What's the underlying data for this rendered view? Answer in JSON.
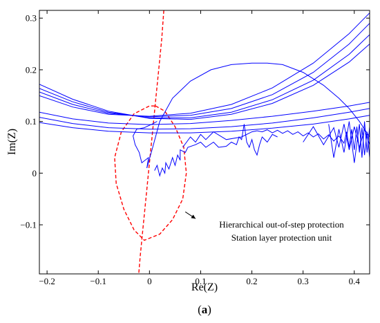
{
  "chart_data": {
    "type": "line",
    "title": "",
    "xlabel": "Re(Z)",
    "ylabel": "Im(Z)",
    "xlim": [
      -0.215,
      0.43
    ],
    "ylim": [
      -0.195,
      0.315
    ],
    "xticks": [
      -0.2,
      -0.1,
      0,
      0.1,
      0.2,
      0.3,
      0.4
    ],
    "xtick_labels": [
      "−0.2",
      "−0.1",
      "0",
      "0.1",
      "0.2",
      "0.3",
      "0.4"
    ],
    "yticks": [
      -0.1,
      0,
      0.1,
      0.2,
      0.3
    ],
    "ytick_labels": [
      "−0.1",
      "0",
      "0.1",
      "0.2",
      "0.3"
    ],
    "grid": false,
    "panel_label": "(a)",
    "panel_letter": "a",
    "panel_open": "(",
    "panel_close": ")",
    "annotation": {
      "line1": "Hierarchical out-of-step protection",
      "line2": "Station layer protection unit",
      "arrow_tail": [
        0.07,
        -0.075
      ],
      "arrow_head": [
        0.09,
        -0.088
      ],
      "text_anchor": [
        0.15,
        -0.105
      ]
    },
    "colors": {
      "trajectory": "#0000ff",
      "boundary": "#ff0000",
      "axes": "#000000"
    },
    "series": [
      {
        "style": "dashed-red",
        "points": [
          [
            0.028,
            0.315
          ],
          [
            0.024,
            0.26
          ],
          [
            0.018,
            0.2
          ],
          [
            0.012,
            0.14
          ],
          [
            0.006,
            0.08
          ],
          [
            0.0,
            0.02
          ],
          [
            -0.006,
            -0.04
          ],
          [
            -0.012,
            -0.1
          ],
          [
            -0.018,
            -0.16
          ],
          [
            -0.021,
            -0.195
          ]
        ]
      },
      {
        "style": "dashed-red",
        "points": [
          [
            0.012,
            0.13
          ],
          [
            0.03,
            0.12
          ],
          [
            0.05,
            0.09
          ],
          [
            0.067,
            0.05
          ],
          [
            0.072,
            0.0
          ],
          [
            0.065,
            -0.05
          ],
          [
            0.045,
            -0.09
          ],
          [
            0.02,
            -0.118
          ],
          [
            -0.01,
            -0.13
          ],
          [
            -0.03,
            -0.11
          ],
          [
            -0.05,
            -0.07
          ],
          [
            -0.065,
            -0.02
          ],
          [
            -0.068,
            0.03
          ],
          [
            -0.055,
            0.08
          ],
          [
            -0.03,
            0.115
          ],
          [
            0.0,
            0.13
          ],
          [
            0.012,
            0.13
          ]
        ]
      },
      {
        "style": "solid-blue",
        "points": [
          [
            -0.215,
            0.172
          ],
          [
            -0.15,
            0.143
          ],
          [
            -0.08,
            0.12
          ],
          [
            0.0,
            0.106
          ],
          [
            0.08,
            0.104
          ],
          [
            0.16,
            0.114
          ],
          [
            0.24,
            0.135
          ],
          [
            0.32,
            0.17
          ],
          [
            0.39,
            0.215
          ],
          [
            0.43,
            0.25
          ]
        ]
      },
      {
        "style": "solid-blue",
        "points": [
          [
            -0.215,
            0.164
          ],
          [
            -0.15,
            0.138
          ],
          [
            -0.08,
            0.118
          ],
          [
            0.0,
            0.107
          ],
          [
            0.08,
            0.107
          ],
          [
            0.16,
            0.118
          ],
          [
            0.24,
            0.142
          ],
          [
            0.32,
            0.18
          ],
          [
            0.39,
            0.23
          ],
          [
            0.43,
            0.268
          ]
        ]
      },
      {
        "style": "solid-blue",
        "points": [
          [
            -0.215,
            0.157
          ],
          [
            -0.15,
            0.133
          ],
          [
            -0.08,
            0.116
          ],
          [
            0.0,
            0.109
          ],
          [
            0.08,
            0.112
          ],
          [
            0.16,
            0.125
          ],
          [
            0.24,
            0.152
          ],
          [
            0.32,
            0.195
          ],
          [
            0.39,
            0.25
          ],
          [
            0.43,
            0.29
          ]
        ]
      },
      {
        "style": "solid-blue",
        "points": [
          [
            -0.215,
            0.15
          ],
          [
            -0.15,
            0.128
          ],
          [
            -0.08,
            0.114
          ],
          [
            0.0,
            0.11
          ],
          [
            0.08,
            0.116
          ],
          [
            0.16,
            0.133
          ],
          [
            0.24,
            0.165
          ],
          [
            0.32,
            0.213
          ],
          [
            0.39,
            0.27
          ],
          [
            0.43,
            0.31
          ]
        ]
      },
      {
        "style": "solid-blue",
        "points": [
          [
            -0.215,
            0.118
          ],
          [
            -0.15,
            0.105
          ],
          [
            -0.08,
            0.097
          ],
          [
            0.0,
            0.094
          ],
          [
            0.08,
            0.096
          ],
          [
            0.16,
            0.102
          ],
          [
            0.24,
            0.11
          ],
          [
            0.32,
            0.12
          ],
          [
            0.39,
            0.13
          ],
          [
            0.43,
            0.137
          ]
        ]
      },
      {
        "style": "solid-blue",
        "points": [
          [
            -0.215,
            0.108
          ],
          [
            -0.15,
            0.096
          ],
          [
            -0.08,
            0.088
          ],
          [
            0.0,
            0.085
          ],
          [
            0.08,
            0.086
          ],
          [
            0.16,
            0.09
          ],
          [
            0.24,
            0.097
          ],
          [
            0.32,
            0.107
          ],
          [
            0.39,
            0.118
          ],
          [
            0.43,
            0.125
          ]
        ]
      },
      {
        "style": "solid-blue",
        "points": [
          [
            -0.215,
            0.098
          ],
          [
            -0.15,
            0.088
          ],
          [
            -0.08,
            0.081
          ],
          [
            0.0,
            0.078
          ],
          [
            0.08,
            0.078
          ],
          [
            0.16,
            0.081
          ],
          [
            0.24,
            0.087
          ],
          [
            0.32,
            0.095
          ],
          [
            0.39,
            0.105
          ],
          [
            0.43,
            0.112
          ]
        ]
      },
      {
        "style": "solid-blue",
        "points": [
          [
            -0.005,
            0.01
          ],
          [
            0.005,
            0.045
          ],
          [
            0.02,
            0.1
          ],
          [
            0.045,
            0.145
          ],
          [
            0.08,
            0.178
          ],
          [
            0.12,
            0.2
          ],
          [
            0.16,
            0.21
          ],
          [
            0.2,
            0.213
          ],
          [
            0.23,
            0.213
          ],
          [
            0.26,
            0.21
          ],
          [
            0.3,
            0.195
          ],
          [
            0.34,
            0.17
          ],
          [
            0.37,
            0.145
          ],
          [
            0.39,
            0.125
          ],
          [
            0.41,
            0.1
          ],
          [
            0.43,
            0.07
          ]
        ]
      },
      {
        "style": "solid-blue",
        "points": [
          [
            0.01,
            0.005
          ],
          [
            0.015,
            0.015
          ],
          [
            0.02,
            -0.005
          ],
          [
            0.025,
            0.01
          ],
          [
            0.03,
            0.0
          ],
          [
            0.032,
            0.02
          ],
          [
            0.038,
            0.008
          ],
          [
            0.045,
            0.03
          ],
          [
            0.05,
            0.015
          ],
          [
            0.055,
            0.035
          ],
          [
            0.06,
            0.025
          ],
          [
            0.06,
            0.045
          ],
          [
            0.07,
            0.04
          ],
          [
            0.075,
            0.05
          ],
          [
            0.09,
            0.055
          ],
          [
            0.1,
            0.06
          ],
          [
            0.11,
            0.05
          ],
          [
            0.125,
            0.06
          ],
          [
            0.135,
            0.05
          ],
          [
            0.15,
            0.052
          ],
          [
            0.16,
            0.06
          ],
          [
            0.17,
            0.055
          ],
          [
            0.175,
            0.07
          ],
          [
            0.18,
            0.065
          ],
          [
            0.185,
            0.095
          ],
          [
            0.19,
            0.06
          ],
          [
            0.195,
            0.05
          ],
          [
            0.2,
            0.065
          ],
          [
            0.205,
            0.045
          ],
          [
            0.21,
            0.035
          ],
          [
            0.215,
            0.055
          ],
          [
            0.22,
            0.07
          ],
          [
            0.23,
            0.06
          ],
          [
            0.24,
            0.075
          ],
          [
            0.25,
            0.07
          ]
        ]
      },
      {
        "style": "solid-blue",
        "points": [
          [
            0.21,
            0.082
          ],
          [
            0.22,
            0.08
          ],
          [
            0.23,
            0.084
          ],
          [
            0.24,
            0.078
          ],
          [
            0.25,
            0.083
          ],
          [
            0.26,
            0.077
          ],
          [
            0.27,
            0.082
          ],
          [
            0.28,
            0.075
          ],
          [
            0.29,
            0.08
          ],
          [
            0.3,
            0.072
          ],
          [
            0.31,
            0.078
          ],
          [
            0.32,
            0.07
          ],
          [
            0.33,
            0.076
          ],
          [
            0.34,
            0.066
          ],
          [
            0.35,
            0.074
          ],
          [
            0.36,
            0.062
          ],
          [
            0.37,
            0.072
          ],
          [
            0.38,
            0.058
          ],
          [
            0.385,
            0.08
          ],
          [
            0.39,
            0.05
          ],
          [
            0.395,
            0.085
          ],
          [
            0.4,
            0.045
          ],
          [
            0.405,
            0.09
          ],
          [
            0.41,
            0.04
          ],
          [
            0.415,
            0.088
          ],
          [
            0.42,
            0.035
          ],
          [
            0.425,
            0.08
          ],
          [
            0.43,
            0.03
          ]
        ]
      },
      {
        "style": "solid-blue",
        "points": [
          [
            0.35,
            0.095
          ],
          [
            0.36,
            0.03
          ],
          [
            0.37,
            0.085
          ],
          [
            0.38,
            0.04
          ],
          [
            0.39,
            0.1
          ],
          [
            0.4,
            0.02
          ],
          [
            0.41,
            0.095
          ],
          [
            0.415,
            0.03
          ],
          [
            0.42,
            0.1
          ],
          [
            0.425,
            0.04
          ],
          [
            0.43,
            0.09
          ]
        ]
      },
      {
        "style": "solid-blue",
        "points": [
          [
            0.3,
            0.06
          ],
          [
            0.32,
            0.09
          ],
          [
            0.34,
            0.055
          ],
          [
            0.36,
            0.088
          ],
          [
            0.37,
            0.05
          ],
          [
            0.38,
            0.095
          ],
          [
            0.39,
            0.045
          ],
          [
            0.4,
            0.09
          ],
          [
            0.41,
            0.05
          ],
          [
            0.42,
            0.085
          ],
          [
            0.43,
            0.055
          ]
        ]
      },
      {
        "style": "solid-blue",
        "points": [
          [
            0.065,
            0.05
          ],
          [
            0.08,
            0.07
          ],
          [
            0.09,
            0.06
          ],
          [
            0.1,
            0.075
          ],
          [
            0.11,
            0.065
          ],
          [
            0.125,
            0.08
          ],
          [
            0.15,
            0.065
          ],
          [
            0.18,
            0.07
          ],
          [
            0.2,
            0.08
          ],
          [
            0.21,
            0.082
          ]
        ]
      },
      {
        "style": "solid-blue",
        "points": [
          [
            -0.005,
            0.01
          ],
          [
            -0.002,
            0.03
          ],
          [
            -0.015,
            0.02
          ],
          [
            -0.02,
            0.04
          ],
          [
            -0.028,
            0.055
          ],
          [
            -0.032,
            0.072
          ],
          [
            -0.025,
            0.085
          ],
          [
            -0.01,
            0.088
          ],
          [
            0.005,
            0.095
          ],
          [
            0.015,
            0.1
          ]
        ]
      }
    ]
  }
}
